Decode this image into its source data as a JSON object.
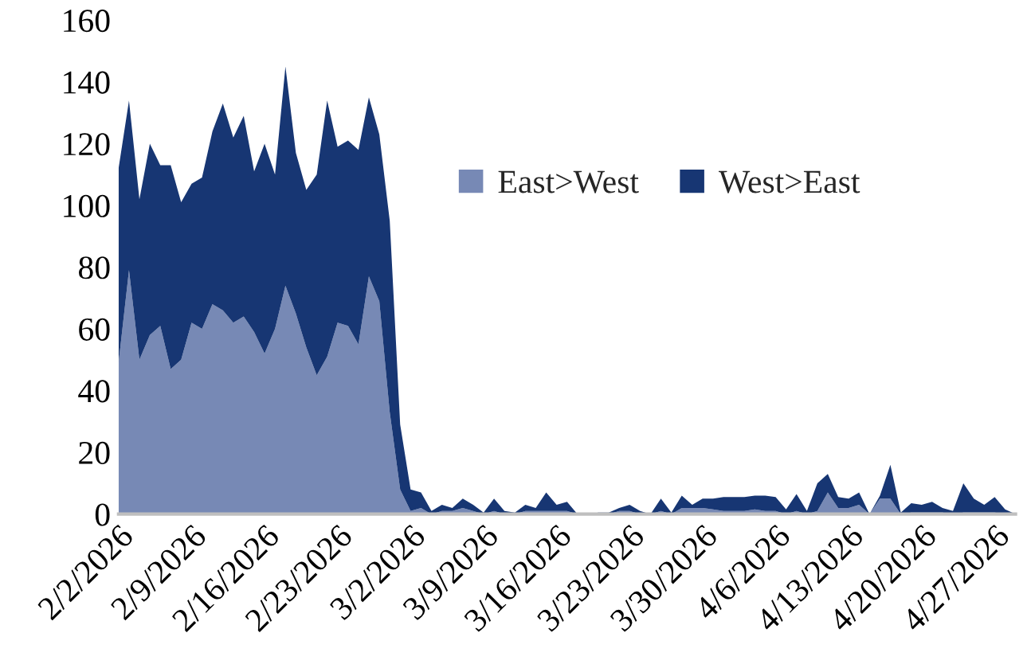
{
  "chart_data": {
    "type": "area",
    "stacked": true,
    "x": [
      "2026-02-02",
      "2026-02-03",
      "2026-02-04",
      "2026-02-05",
      "2026-02-06",
      "2026-02-07",
      "2026-02-08",
      "2026-02-09",
      "2026-02-10",
      "2026-02-11",
      "2026-02-12",
      "2026-02-13",
      "2026-02-14",
      "2026-02-15",
      "2026-02-16",
      "2026-02-17",
      "2026-02-18",
      "2026-02-19",
      "2026-02-20",
      "2026-02-21",
      "2026-02-22",
      "2026-02-23",
      "2026-02-24",
      "2026-02-25",
      "2026-02-26",
      "2026-02-27",
      "2026-02-28",
      "2026-03-01",
      "2026-03-02",
      "2026-03-03",
      "2026-03-04",
      "2026-03-05",
      "2026-03-06",
      "2026-03-07",
      "2026-03-08",
      "2026-03-09",
      "2026-03-10",
      "2026-03-11",
      "2026-03-12",
      "2026-03-13",
      "2026-03-14",
      "2026-03-15",
      "2026-03-16",
      "2026-03-17",
      "2026-03-18",
      "2026-03-19",
      "2026-03-20",
      "2026-03-21",
      "2026-03-22",
      "2026-03-23",
      "2026-03-24",
      "2026-03-25",
      "2026-03-26",
      "2026-03-27",
      "2026-03-28",
      "2026-03-29",
      "2026-03-30",
      "2026-03-31",
      "2026-04-01",
      "2026-04-02",
      "2026-04-03",
      "2026-04-04",
      "2026-04-05",
      "2026-04-06",
      "2026-04-07",
      "2026-04-08",
      "2026-04-09",
      "2026-04-10",
      "2026-04-11",
      "2026-04-12",
      "2026-04-13",
      "2026-04-14",
      "2026-04-15",
      "2026-04-16",
      "2026-04-17",
      "2026-04-18",
      "2026-04-19",
      "2026-04-20",
      "2026-04-21",
      "2026-04-22",
      "2026-04-23",
      "2026-04-24",
      "2026-04-25",
      "2026-04-26",
      "2026-04-27",
      "2026-04-28",
      "2026-04-29"
    ],
    "series": [
      {
        "name": "East>West",
        "color": "#7789b5",
        "values": [
          49,
          79,
          50,
          58,
          61,
          47,
          50,
          62,
          60,
          68,
          66,
          62,
          64,
          59,
          52,
          60,
          74,
          65,
          54,
          45,
          51,
          62,
          61,
          55,
          77,
          69,
          33,
          8,
          1,
          2,
          0,
          1,
          1,
          2,
          1,
          0,
          1,
          0,
          0,
          1,
          1,
          1,
          1,
          1,
          0,
          0,
          0,
          0,
          1,
          1,
          0,
          0,
          1,
          0,
          2,
          2,
          2,
          1.5,
          1,
          1,
          1,
          1.5,
          1,
          1,
          0,
          1,
          0,
          1,
          7,
          2,
          2,
          3,
          0,
          5,
          5,
          0,
          0.5,
          0.5,
          0.5,
          0.5,
          0,
          0.5,
          0.5,
          0.5,
          0.5,
          0,
          0
        ]
      },
      {
        "name": "West>East",
        "color": "#173673",
        "values": [
          63,
          55,
          52,
          62,
          52,
          66,
          51,
          45,
          49,
          56,
          67,
          60,
          65,
          52,
          68,
          50,
          71,
          52,
          51,
          65,
          83,
          57,
          60,
          63,
          58,
          54,
          62,
          21,
          7,
          5,
          1,
          2,
          1,
          3,
          2,
          0.5,
          4,
          1,
          0.5,
          2,
          1,
          6,
          2,
          3,
          0,
          0,
          0.5,
          0.5,
          1,
          2,
          1,
          0,
          4,
          0.5,
          4,
          1,
          3,
          3.5,
          4.5,
          4.5,
          4.5,
          4.5,
          5,
          4.5,
          1.5,
          5.5,
          1,
          9,
          6,
          3.5,
          3,
          4,
          0,
          1,
          11,
          0.5,
          3,
          2.5,
          3.5,
          1.5,
          1,
          9.5,
          4.5,
          2.5,
          5,
          1.5,
          0
        ]
      }
    ],
    "xlim": [
      "2026-02-02",
      "2026-04-29"
    ],
    "xticks": [
      {
        "value": "2026-02-02",
        "label": "2/2/2026"
      },
      {
        "value": "2026-02-09",
        "label": "2/9/2026"
      },
      {
        "value": "2026-02-16",
        "label": "2/16/2026"
      },
      {
        "value": "2026-02-23",
        "label": "2/23/2026"
      },
      {
        "value": "2026-03-02",
        "label": "3/2/2026"
      },
      {
        "value": "2026-03-09",
        "label": "3/9/2026"
      },
      {
        "value": "2026-03-16",
        "label": "3/16/2026"
      },
      {
        "value": "2026-03-23",
        "label": "3/23/2026"
      },
      {
        "value": "2026-03-30",
        "label": "3/30/2026"
      },
      {
        "value": "2026-04-06",
        "label": "4/6/2026"
      },
      {
        "value": "2026-04-13",
        "label": "4/13/2026"
      },
      {
        "value": "2026-04-20",
        "label": "4/20/2026"
      },
      {
        "value": "2026-04-27",
        "label": "4/27/2026"
      }
    ],
    "ylim": [
      0,
      160
    ],
    "yticks": [
      0,
      20,
      40,
      60,
      80,
      100,
      120,
      140,
      160
    ],
    "legend": "top right"
  }
}
